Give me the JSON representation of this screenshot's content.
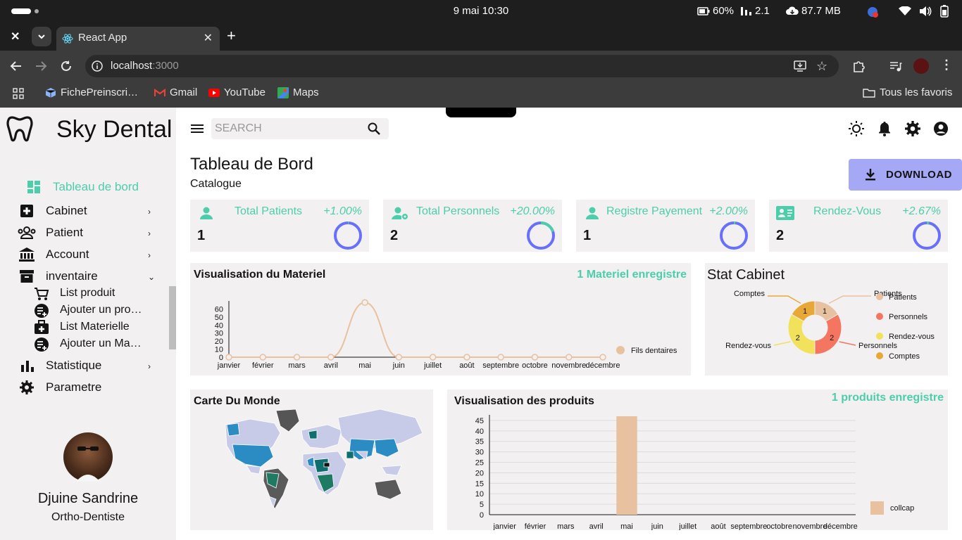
{
  "os": {
    "clock": "9 mai  10:30",
    "battery": "60%",
    "signal": "2.1",
    "memory": "87.7 MB"
  },
  "browser": {
    "tab_title": "React App",
    "url_host": "localhost",
    "url_port": ":3000",
    "bookmarks": [
      "FichePreinscri…",
      "Gmail",
      "YouTube",
      "Maps"
    ],
    "all_bookmarks": "Tous les favoris"
  },
  "sidebar": {
    "brand": "Sky Dental",
    "items": [
      {
        "label": "Tableau de bord",
        "icon": "dashboard-icon",
        "active": true
      },
      {
        "label": "Cabinet",
        "icon": "medical-plus-icon"
      },
      {
        "label": "Patient",
        "icon": "people-icon"
      },
      {
        "label": "Account",
        "icon": "bank-icon"
      },
      {
        "label": "inventaire",
        "icon": "archive-icon",
        "expanded": true
      }
    ],
    "subitems": [
      {
        "label": "List produit",
        "icon": "cart-icon"
      },
      {
        "label": "Ajouter un pro…",
        "icon": "add-list-icon"
      },
      {
        "label": "List Materielle",
        "icon": "medical-kit-icon"
      },
      {
        "label": "Ajouter un Ma…",
        "icon": "add-list-icon"
      }
    ],
    "items2": [
      {
        "label": "Statistique",
        "icon": "bar-chart-icon"
      },
      {
        "label": "Parametre",
        "icon": "gear-icon"
      }
    ],
    "user": {
      "name": "Djuine Sandrine",
      "role": "Ortho-Dentiste"
    }
  },
  "topbar": {
    "search_placeholder": "SEARCH"
  },
  "page": {
    "title": "Tableau de Bord",
    "subtitle": "Catalogue",
    "download": "DOWNLOAD"
  },
  "cards": [
    {
      "title": "Total Patients",
      "value": "1",
      "pct": "+1.00%",
      "progress": 0.01,
      "icon": "person-icon"
    },
    {
      "title": "Total Personnels",
      "value": "2",
      "pct": "+20.00%",
      "progress": 0.2,
      "icon": "person-gear-icon"
    },
    {
      "title": "Registre Payement",
      "value": "1",
      "pct": "+2.00%",
      "progress": 0.02,
      "icon": "person-icon"
    },
    {
      "title": "Rendez-Vous",
      "value": "2",
      "pct": "+2.67%",
      "progress": 0.0267,
      "icon": "contact-card-icon"
    }
  ],
  "colors": {
    "accent": "#4cceac",
    "ring": "#6870fa",
    "panel": "#f2f0f0",
    "line": "#e8c1a0",
    "button": "#a4a8f5"
  },
  "panels": {
    "materiel": {
      "title": "Visualisation du Materiel",
      "count": "1 Materiel enregistre"
    },
    "cabinet": {
      "title": "Stat Cabinet"
    },
    "monde": {
      "title": "Carte Du Monde"
    },
    "produits": {
      "title": "Visualisation des produits",
      "count": "1 produits enregistre"
    }
  },
  "chart_data": [
    {
      "type": "line",
      "categories": [
        "janvier",
        "février",
        "mars",
        "avril",
        "mai",
        "juin",
        "juillet",
        "août",
        "septembre",
        "octobre",
        "novembre",
        "décembre"
      ],
      "series": [
        {
          "name": "Fils dentaires",
          "values": [
            0,
            0,
            0,
            0,
            68,
            0,
            0,
            0,
            0,
            0,
            0,
            0
          ]
        }
      ],
      "yticks": [
        0,
        10,
        20,
        30,
        40,
        50,
        60
      ],
      "ylim": [
        0,
        70
      ],
      "legend": "right"
    },
    {
      "type": "pie",
      "labels": [
        "Patients",
        "Personnels",
        "Rendez-vous",
        "Comptes"
      ],
      "values": [
        1,
        2,
        2,
        1
      ],
      "colors": [
        "#e8c1a0",
        "#f47560",
        "#f1e15b",
        "#e8a838"
      ],
      "legend": "right"
    },
    {
      "type": "bar",
      "categories": [
        "janvier",
        "février",
        "mars",
        "avril",
        "mai",
        "juin",
        "juillet",
        "août",
        "septembre",
        "octobre",
        "novembre",
        "décembre"
      ],
      "series": [
        {
          "name": "collcap",
          "values": [
            0,
            0,
            0,
            0,
            47,
            0,
            0,
            0,
            0,
            0,
            0,
            0
          ]
        }
      ],
      "yticks": [
        0,
        5,
        10,
        15,
        20,
        25,
        30,
        35,
        40,
        45
      ],
      "ylim": [
        0,
        47
      ],
      "legend": "right"
    }
  ]
}
